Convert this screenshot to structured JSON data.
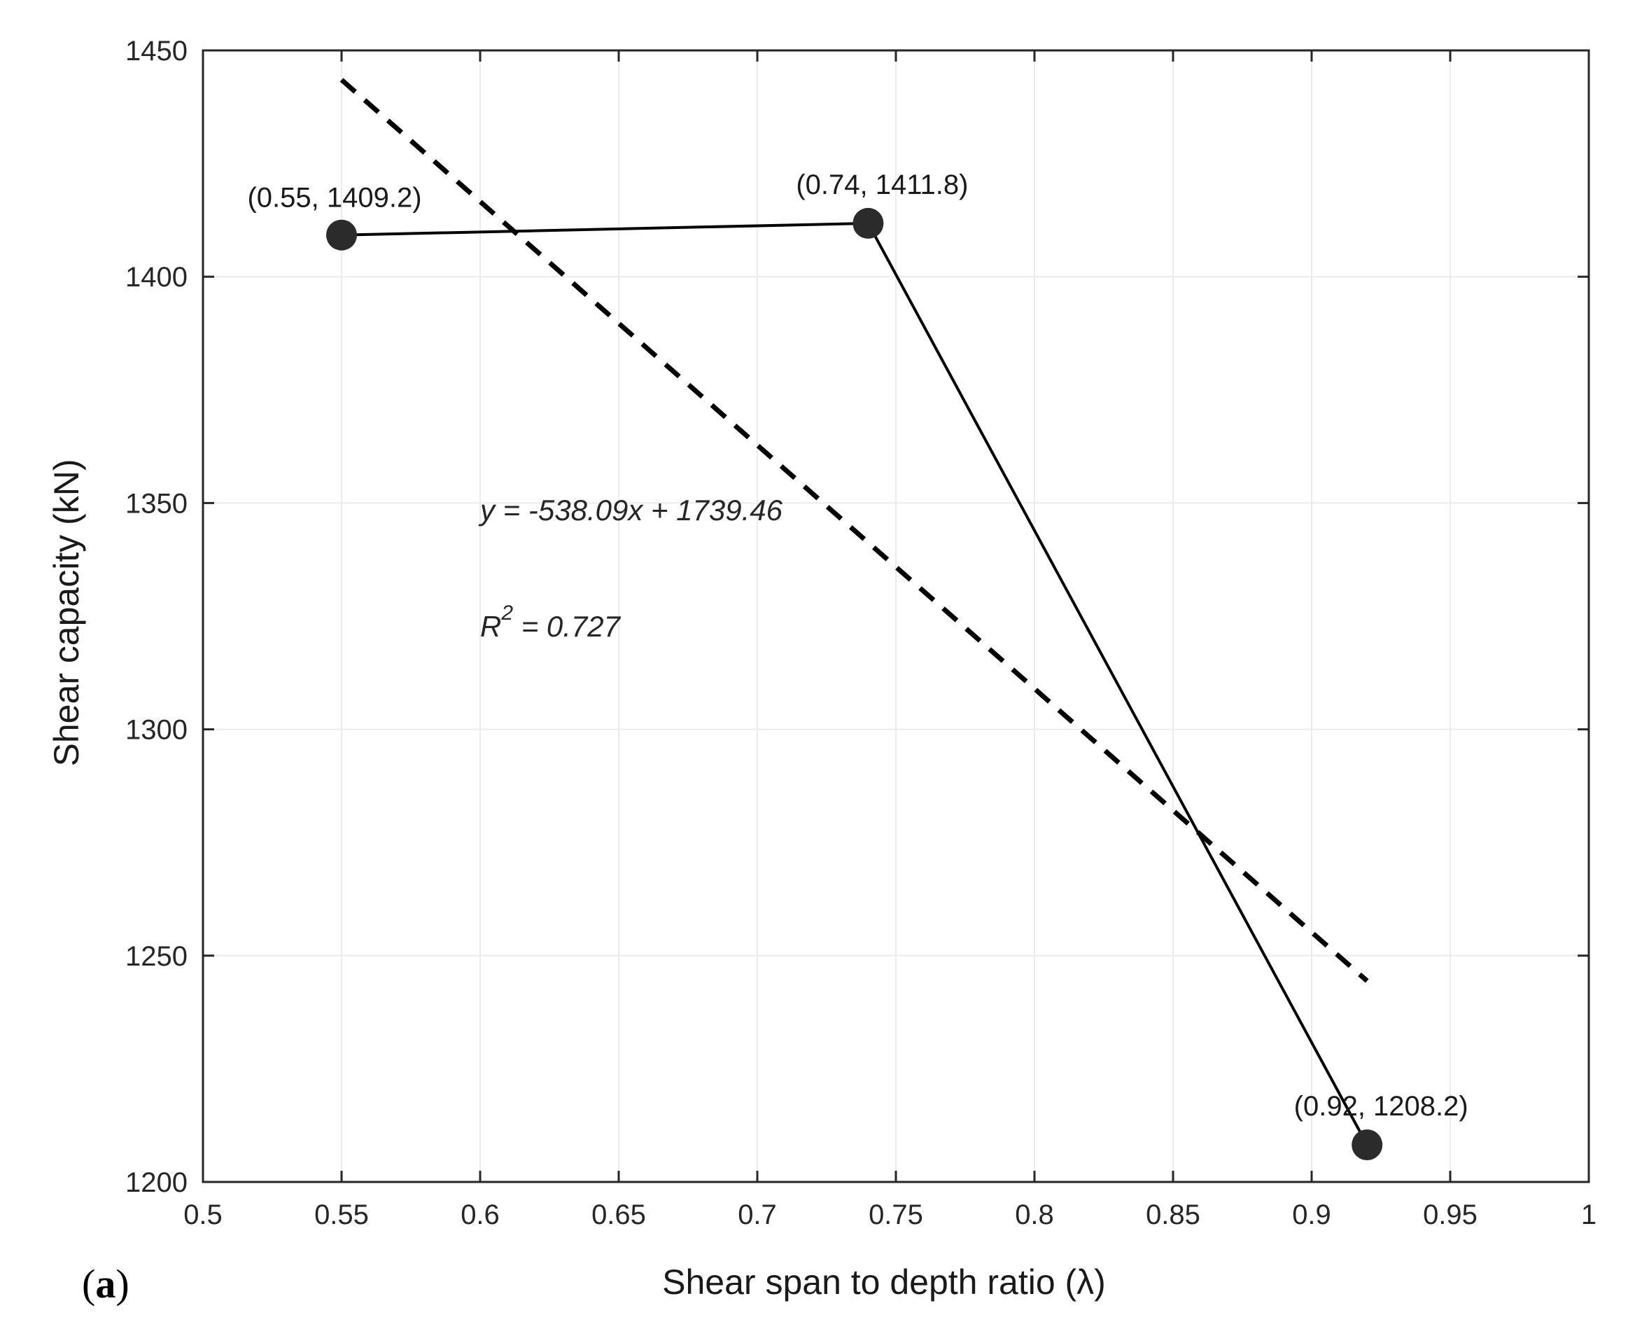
{
  "chart_data": {
    "type": "line",
    "panel_label": "a",
    "xlabel": "Shear span to depth ratio (λ)",
    "ylabel": "Shear capacity (kN)",
    "xlim": [
      0.5,
      1.0
    ],
    "ylim": [
      1200,
      1450
    ],
    "grid": true,
    "x_ticks": [
      0.5,
      0.55,
      0.6,
      0.65,
      0.7,
      0.75,
      0.8,
      0.85,
      0.9,
      0.95,
      1.0
    ],
    "x_tick_labels": [
      "0.5",
      "0.55",
      "0.6",
      "0.65",
      "0.7",
      "0.75",
      "0.8",
      "0.85",
      "0.9",
      "0.95",
      "1"
    ],
    "y_ticks": [
      1200,
      1250,
      1300,
      1350,
      1400,
      1450
    ],
    "y_tick_labels": [
      "1200",
      "1250",
      "1300",
      "1350",
      "1400",
      "1450"
    ],
    "series": [
      {
        "name": "Shear capacity",
        "style": "solid",
        "marker": "circle",
        "x": [
          0.55,
          0.74,
          0.92
        ],
        "y": [
          1409.2,
          1411.8,
          1208.2
        ],
        "point_labels": [
          "(0.55, 1409.2)",
          "(0.74, 1411.8)",
          "(0.92, 1208.2)"
        ]
      }
    ],
    "trendline": {
      "style": "dashed",
      "slope": -538.09,
      "intercept": 1739.46,
      "x_range": [
        0.55,
        0.92
      ],
      "equation_label": "y = -538.09x + 1739.46",
      "r2_prefix": "R",
      "r2_exponent": "2",
      "r2_value": " = 0.727"
    },
    "colors": {
      "line": "#000000",
      "marker": "#2b2b2b",
      "grid": "#ebebeb",
      "axis": "#262626"
    }
  }
}
